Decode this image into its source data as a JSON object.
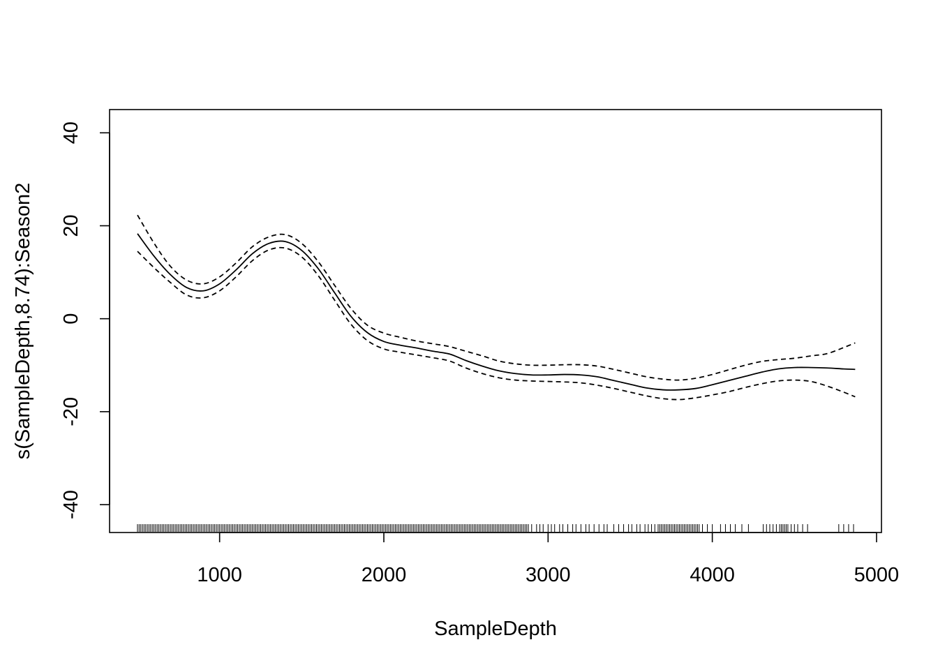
{
  "chart_data": {
    "type": "line",
    "xlabel": "SampleDepth",
    "ylabel": "s(SampleDepth,8.74):Season2",
    "xlim": [
      330,
      5030
    ],
    "ylim": [
      -46,
      45
    ],
    "x_ticks": [
      1000,
      2000,
      3000,
      4000,
      5000
    ],
    "y_ticks": [
      -40,
      -20,
      0,
      20,
      40
    ],
    "x_tick_labels": [
      "1000",
      "2000",
      "3000",
      "4000",
      "5000"
    ],
    "y_tick_labels": [
      "-40",
      "-20",
      "0",
      "20",
      "40"
    ],
    "series": [
      {
        "role": "fit",
        "x": [
          500,
          600,
          700,
          800,
          900,
          1000,
          1100,
          1200,
          1300,
          1400,
          1500,
          1600,
          1700,
          1800,
          1900,
          2000,
          2100,
          2200,
          2300,
          2400,
          2500,
          2600,
          2700,
          2800,
          2900,
          3000,
          3100,
          3200,
          3300,
          3400,
          3500,
          3600,
          3700,
          3800,
          3900,
          4000,
          4100,
          4200,
          4300,
          4400,
          4500,
          4600,
          4700,
          4800,
          4870
        ],
        "values": [
          18.3,
          13.5,
          9.5,
          6.7,
          6.0,
          7.5,
          10.5,
          14.0,
          16.2,
          16.6,
          14.7,
          10.8,
          5.6,
          0.5,
          -3.0,
          -4.9,
          -5.7,
          -6.3,
          -7.0,
          -7.6,
          -9.0,
          -10.2,
          -11.2,
          -11.8,
          -12.1,
          -12.1,
          -12.0,
          -12.1,
          -12.5,
          -13.3,
          -14.1,
          -14.9,
          -15.3,
          -15.3,
          -15.0,
          -14.2,
          -13.3,
          -12.4,
          -11.5,
          -10.8,
          -10.5,
          -10.5,
          -10.6,
          -10.8,
          -10.9
        ]
      },
      {
        "role": "upper",
        "x": [
          500,
          600,
          700,
          800,
          900,
          1000,
          1100,
          1200,
          1300,
          1400,
          1500,
          1600,
          1700,
          1800,
          1900,
          2000,
          2100,
          2200,
          2300,
          2400,
          2500,
          2600,
          2700,
          2800,
          2900,
          3000,
          3100,
          3200,
          3300,
          3400,
          3500,
          3600,
          3700,
          3800,
          3900,
          4000,
          4100,
          4200,
          4300,
          4400,
          4500,
          4600,
          4700,
          4800,
          4870
        ],
        "values": [
          22.3,
          16.3,
          11.3,
          8.3,
          7.5,
          9.0,
          12.0,
          15.5,
          17.6,
          18.1,
          16.2,
          12.3,
          7.2,
          2.2,
          -1.4,
          -3.1,
          -4.0,
          -4.8,
          -5.4,
          -6.0,
          -7.0,
          -8.0,
          -9.1,
          -9.7,
          -10.0,
          -10.0,
          -9.9,
          -9.9,
          -10.2,
          -10.9,
          -11.7,
          -12.5,
          -13.0,
          -13.2,
          -12.8,
          -12.0,
          -11.0,
          -10.0,
          -9.2,
          -8.8,
          -8.5,
          -8.0,
          -7.5,
          -6.2,
          -5.2
        ]
      },
      {
        "role": "lower",
        "x": [
          500,
          600,
          700,
          800,
          900,
          1000,
          1100,
          1200,
          1300,
          1400,
          1500,
          1600,
          1700,
          1800,
          1900,
          2000,
          2100,
          2200,
          2300,
          2400,
          2500,
          2600,
          2700,
          2800,
          2900,
          3000,
          3100,
          3200,
          3300,
          3400,
          3500,
          3600,
          3700,
          3800,
          3900,
          4000,
          4100,
          4200,
          4300,
          4400,
          4500,
          4600,
          4700,
          4800,
          4870
        ],
        "values": [
          14.5,
          11.0,
          7.8,
          5.1,
          4.5,
          6.0,
          9.0,
          12.5,
          14.8,
          15.2,
          13.3,
          9.3,
          4.0,
          -1.2,
          -4.7,
          -6.5,
          -7.2,
          -7.8,
          -8.4,
          -9.1,
          -10.6,
          -11.8,
          -12.7,
          -13.2,
          -13.4,
          -13.5,
          -13.6,
          -13.8,
          -14.3,
          -15.0,
          -15.8,
          -16.6,
          -17.2,
          -17.4,
          -17.0,
          -16.4,
          -15.7,
          -14.8,
          -14.0,
          -13.4,
          -13.2,
          -13.5,
          -14.5,
          -15.8,
          -16.8
        ]
      }
    ],
    "rug_x": [
      500,
      510,
      520,
      530,
      540,
      550,
      560,
      570,
      580,
      590,
      600,
      610,
      620,
      630,
      640,
      650,
      660,
      670,
      680,
      690,
      700,
      710,
      720,
      730,
      740,
      750,
      760,
      770,
      780,
      790,
      800,
      810,
      820,
      830,
      840,
      850,
      860,
      870,
      880,
      890,
      900,
      910,
      920,
      930,
      940,
      950,
      960,
      970,
      980,
      990,
      1000,
      1010,
      1020,
      1030,
      1040,
      1050,
      1060,
      1070,
      1080,
      1090,
      1100,
      1110,
      1120,
      1130,
      1140,
      1150,
      1160,
      1170,
      1180,
      1190,
      1200,
      1210,
      1220,
      1230,
      1240,
      1250,
      1260,
      1270,
      1280,
      1290,
      1300,
      1310,
      1320,
      1330,
      1340,
      1350,
      1360,
      1370,
      1380,
      1390,
      1400,
      1410,
      1420,
      1430,
      1440,
      1450,
      1460,
      1470,
      1480,
      1490,
      1500,
      1510,
      1520,
      1530,
      1540,
      1550,
      1560,
      1570,
      1580,
      1590,
      1600,
      1610,
      1620,
      1630,
      1640,
      1650,
      1660,
      1670,
      1680,
      1690,
      1700,
      1710,
      1720,
      1730,
      1740,
      1750,
      1760,
      1770,
      1780,
      1790,
      1800,
      1810,
      1820,
      1830,
      1840,
      1850,
      1860,
      1870,
      1880,
      1890,
      1900,
      1910,
      1920,
      1930,
      1940,
      1950,
      1960,
      1970,
      1980,
      1990,
      2000,
      2010,
      2020,
      2030,
      2040,
      2050,
      2060,
      2070,
      2080,
      2090,
      2100,
      2110,
      2120,
      2130,
      2140,
      2150,
      2160,
      2170,
      2180,
      2190,
      2200,
      2210,
      2220,
      2230,
      2240,
      2250,
      2260,
      2270,
      2280,
      2290,
      2300,
      2310,
      2320,
      2330,
      2340,
      2350,
      2360,
      2370,
      2380,
      2390,
      2400,
      2410,
      2420,
      2430,
      2440,
      2450,
      2460,
      2470,
      2480,
      2490,
      2500,
      2510,
      2520,
      2530,
      2540,
      2550,
      2560,
      2570,
      2580,
      2590,
      2600,
      2610,
      2620,
      2630,
      2640,
      2650,
      2660,
      2670,
      2680,
      2690,
      2700,
      2710,
      2720,
      2730,
      2740,
      2750,
      2760,
      2770,
      2780,
      2790,
      2800,
      2810,
      2820,
      2830,
      2840,
      2850,
      2860,
      2870,
      2880,
      2900,
      2930,
      2950,
      2970,
      3000,
      3020,
      3040,
      3070,
      3090,
      3120,
      3150,
      3170,
      3200,
      3230,
      3250,
      3280,
      3310,
      3340,
      3360,
      3400,
      3430,
      3460,
      3490,
      3510,
      3540,
      3560,
      3590,
      3610,
      3630,
      3650,
      3670,
      3680,
      3690,
      3700,
      3710,
      3720,
      3730,
      3740,
      3750,
      3760,
      3770,
      3780,
      3790,
      3800,
      3810,
      3820,
      3830,
      3840,
      3850,
      3860,
      3870,
      3880,
      3890,
      3900,
      3910,
      3920,
      3940,
      3970,
      4000,
      4050,
      4080,
      4110,
      4140,
      4180,
      4220,
      4310,
      4330,
      4350,
      4370,
      4390,
      4410,
      4420,
      4430,
      4440,
      4450,
      4460,
      4480,
      4500,
      4520,
      4550,
      4580,
      4770,
      4800,
      4830,
      4860
    ]
  }
}
